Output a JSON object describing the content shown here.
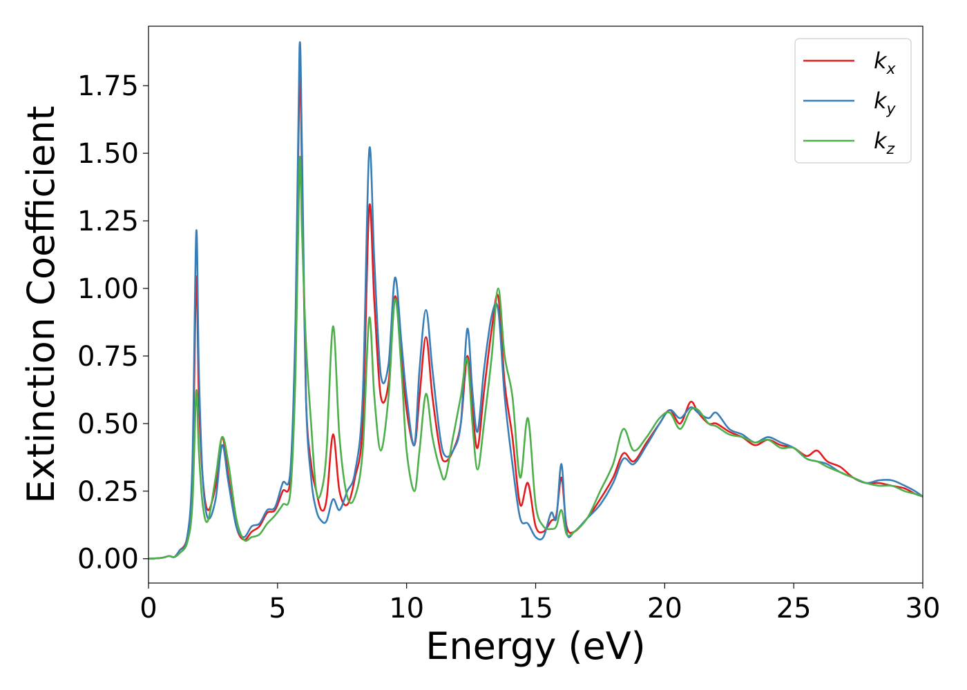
{
  "chart_data": {
    "type": "line",
    "title": "",
    "xlabel": "Energy (eV)",
    "ylabel": "Extinction Coefficient",
    "xlim": [
      0,
      30
    ],
    "ylim": [
      -0.09,
      1.97
    ],
    "xticks": [
      0,
      5,
      10,
      15,
      20,
      25,
      30
    ],
    "xtick_labels": [
      "0",
      "5",
      "10",
      "15",
      "20",
      "25",
      "30"
    ],
    "yticks": [
      0.0,
      0.25,
      0.5,
      0.75,
      1.0,
      1.25,
      1.5,
      1.75
    ],
    "ytick_labels": [
      "0.00",
      "0.25",
      "0.50",
      "0.75",
      "1.00",
      "1.25",
      "1.50",
      "1.75"
    ],
    "grid": false,
    "legend_position": "top-right",
    "series": [
      {
        "name": "k",
        "subscript": "x",
        "color": "#e41a1c",
        "points": [
          [
            0,
            0
          ],
          [
            0.5,
            0.003
          ],
          [
            0.8,
            0.01
          ],
          [
            1.0,
            0.006
          ],
          [
            1.2,
            0.03
          ],
          [
            1.5,
            0.08
          ],
          [
            1.7,
            0.3
          ],
          [
            1.85,
            1.04
          ],
          [
            1.95,
            0.6
          ],
          [
            2.1,
            0.3
          ],
          [
            2.3,
            0.18
          ],
          [
            2.6,
            0.27
          ],
          [
            2.85,
            0.45
          ],
          [
            3.1,
            0.3
          ],
          [
            3.4,
            0.12
          ],
          [
            3.7,
            0.07
          ],
          [
            4.0,
            0.1
          ],
          [
            4.3,
            0.12
          ],
          [
            4.6,
            0.17
          ],
          [
            4.9,
            0.18
          ],
          [
            5.2,
            0.25
          ],
          [
            5.5,
            0.3
          ],
          [
            5.7,
            0.8
          ],
          [
            5.85,
            1.8
          ],
          [
            5.95,
            1.4
          ],
          [
            6.1,
            0.6
          ],
          [
            6.3,
            0.35
          ],
          [
            6.5,
            0.25
          ],
          [
            6.7,
            0.18
          ],
          [
            6.9,
            0.22
          ],
          [
            7.15,
            0.46
          ],
          [
            7.4,
            0.25
          ],
          [
            7.7,
            0.2
          ],
          [
            8.0,
            0.3
          ],
          [
            8.3,
            0.5
          ],
          [
            8.55,
            1.3
          ],
          [
            8.75,
            0.95
          ],
          [
            9.0,
            0.6
          ],
          [
            9.3,
            0.65
          ],
          [
            9.55,
            0.97
          ],
          [
            9.8,
            0.75
          ],
          [
            10.0,
            0.55
          ],
          [
            10.3,
            0.42
          ],
          [
            10.5,
            0.6
          ],
          [
            10.75,
            0.82
          ],
          [
            11.0,
            0.6
          ],
          [
            11.3,
            0.4
          ],
          [
            11.5,
            0.36
          ],
          [
            11.8,
            0.4
          ],
          [
            12.1,
            0.5
          ],
          [
            12.35,
            0.75
          ],
          [
            12.55,
            0.55
          ],
          [
            12.75,
            0.41
          ],
          [
            13.0,
            0.62
          ],
          [
            13.3,
            0.85
          ],
          [
            13.55,
            0.97
          ],
          [
            13.8,
            0.65
          ],
          [
            14.1,
            0.45
          ],
          [
            14.4,
            0.2
          ],
          [
            14.7,
            0.28
          ],
          [
            15.0,
            0.12
          ],
          [
            15.3,
            0.1
          ],
          [
            15.6,
            0.14
          ],
          [
            15.8,
            0.16
          ],
          [
            16.0,
            0.3
          ],
          [
            16.2,
            0.12
          ],
          [
            16.5,
            0.1
          ],
          [
            17.0,
            0.15
          ],
          [
            17.5,
            0.22
          ],
          [
            18.0,
            0.3
          ],
          [
            18.4,
            0.39
          ],
          [
            18.8,
            0.36
          ],
          [
            19.3,
            0.43
          ],
          [
            19.8,
            0.5
          ],
          [
            20.2,
            0.55
          ],
          [
            20.6,
            0.5
          ],
          [
            21.0,
            0.58
          ],
          [
            21.3,
            0.54
          ],
          [
            21.7,
            0.5
          ],
          [
            22.0,
            0.5
          ],
          [
            22.5,
            0.47
          ],
          [
            23.0,
            0.45
          ],
          [
            23.5,
            0.42
          ],
          [
            24.0,
            0.44
          ],
          [
            24.5,
            0.42
          ],
          [
            25.0,
            0.41
          ],
          [
            25.5,
            0.38
          ],
          [
            25.9,
            0.4
          ],
          [
            26.3,
            0.36
          ],
          [
            26.8,
            0.34
          ],
          [
            27.3,
            0.3
          ],
          [
            27.8,
            0.28
          ],
          [
            28.3,
            0.28
          ],
          [
            28.8,
            0.27
          ],
          [
            29.3,
            0.26
          ],
          [
            29.7,
            0.24
          ],
          [
            30.0,
            0.23
          ]
        ]
      },
      {
        "name": "k",
        "subscript": "y",
        "color": "#377eb8",
        "points": [
          [
            0,
            0
          ],
          [
            0.5,
            0.003
          ],
          [
            0.8,
            0.01
          ],
          [
            1.0,
            0.006
          ],
          [
            1.2,
            0.03
          ],
          [
            1.5,
            0.08
          ],
          [
            1.7,
            0.35
          ],
          [
            1.85,
            1.21
          ],
          [
            1.95,
            0.7
          ],
          [
            2.1,
            0.3
          ],
          [
            2.3,
            0.15
          ],
          [
            2.6,
            0.22
          ],
          [
            2.85,
            0.42
          ],
          [
            3.1,
            0.28
          ],
          [
            3.4,
            0.12
          ],
          [
            3.7,
            0.08
          ],
          [
            4.0,
            0.12
          ],
          [
            4.3,
            0.13
          ],
          [
            4.6,
            0.18
          ],
          [
            4.9,
            0.19
          ],
          [
            5.2,
            0.28
          ],
          [
            5.5,
            0.33
          ],
          [
            5.7,
            0.9
          ],
          [
            5.85,
            1.89
          ],
          [
            5.95,
            1.5
          ],
          [
            6.1,
            0.6
          ],
          [
            6.3,
            0.3
          ],
          [
            6.5,
            0.18
          ],
          [
            6.7,
            0.14
          ],
          [
            6.9,
            0.14
          ],
          [
            7.15,
            0.22
          ],
          [
            7.4,
            0.18
          ],
          [
            7.7,
            0.25
          ],
          [
            8.0,
            0.32
          ],
          [
            8.3,
            0.6
          ],
          [
            8.55,
            1.51
          ],
          [
            8.75,
            1.1
          ],
          [
            9.0,
            0.68
          ],
          [
            9.3,
            0.72
          ],
          [
            9.55,
            1.04
          ],
          [
            9.8,
            0.8
          ],
          [
            10.0,
            0.6
          ],
          [
            10.3,
            0.42
          ],
          [
            10.5,
            0.7
          ],
          [
            10.75,
            0.92
          ],
          [
            11.0,
            0.7
          ],
          [
            11.3,
            0.45
          ],
          [
            11.5,
            0.38
          ],
          [
            11.8,
            0.4
          ],
          [
            12.1,
            0.5
          ],
          [
            12.35,
            0.85
          ],
          [
            12.55,
            0.62
          ],
          [
            12.75,
            0.47
          ],
          [
            13.0,
            0.7
          ],
          [
            13.3,
            0.9
          ],
          [
            13.55,
            0.92
          ],
          [
            13.8,
            0.6
          ],
          [
            14.1,
            0.35
          ],
          [
            14.4,
            0.15
          ],
          [
            14.7,
            0.13
          ],
          [
            15.0,
            0.08
          ],
          [
            15.3,
            0.08
          ],
          [
            15.6,
            0.17
          ],
          [
            15.8,
            0.15
          ],
          [
            16.0,
            0.35
          ],
          [
            16.2,
            0.1
          ],
          [
            16.5,
            0.1
          ],
          [
            17.0,
            0.15
          ],
          [
            17.5,
            0.2
          ],
          [
            18.0,
            0.28
          ],
          [
            18.4,
            0.37
          ],
          [
            18.8,
            0.35
          ],
          [
            19.3,
            0.42
          ],
          [
            19.8,
            0.5
          ],
          [
            20.2,
            0.55
          ],
          [
            20.6,
            0.52
          ],
          [
            21.0,
            0.56
          ],
          [
            21.3,
            0.54
          ],
          [
            21.7,
            0.52
          ],
          [
            22.0,
            0.54
          ],
          [
            22.5,
            0.48
          ],
          [
            23.0,
            0.46
          ],
          [
            23.5,
            0.43
          ],
          [
            24.0,
            0.45
          ],
          [
            24.5,
            0.43
          ],
          [
            25.0,
            0.41
          ],
          [
            25.5,
            0.37
          ],
          [
            25.9,
            0.36
          ],
          [
            26.3,
            0.35
          ],
          [
            26.8,
            0.32
          ],
          [
            27.3,
            0.3
          ],
          [
            27.8,
            0.28
          ],
          [
            28.3,
            0.29
          ],
          [
            28.8,
            0.29
          ],
          [
            29.3,
            0.27
          ],
          [
            29.7,
            0.25
          ],
          [
            30.0,
            0.23
          ]
        ]
      },
      {
        "name": "k",
        "subscript": "z",
        "color": "#4daf4a",
        "points": [
          [
            0,
            0
          ],
          [
            0.5,
            0.003
          ],
          [
            0.8,
            0.01
          ],
          [
            1.0,
            0.006
          ],
          [
            1.2,
            0.02
          ],
          [
            1.5,
            0.06
          ],
          [
            1.7,
            0.2
          ],
          [
            1.85,
            0.62
          ],
          [
            1.95,
            0.4
          ],
          [
            2.1,
            0.2
          ],
          [
            2.3,
            0.14
          ],
          [
            2.6,
            0.3
          ],
          [
            2.85,
            0.45
          ],
          [
            3.1,
            0.35
          ],
          [
            3.4,
            0.15
          ],
          [
            3.7,
            0.07
          ],
          [
            4.0,
            0.08
          ],
          [
            4.3,
            0.09
          ],
          [
            4.6,
            0.13
          ],
          [
            4.9,
            0.16
          ],
          [
            5.2,
            0.2
          ],
          [
            5.5,
            0.25
          ],
          [
            5.7,
            0.7
          ],
          [
            5.85,
            1.47
          ],
          [
            5.95,
            1.2
          ],
          [
            6.1,
            0.8
          ],
          [
            6.3,
            0.5
          ],
          [
            6.5,
            0.25
          ],
          [
            6.7,
            0.25
          ],
          [
            6.9,
            0.4
          ],
          [
            7.15,
            0.86
          ],
          [
            7.4,
            0.45
          ],
          [
            7.7,
            0.23
          ],
          [
            8.0,
            0.23
          ],
          [
            8.3,
            0.4
          ],
          [
            8.55,
            0.89
          ],
          [
            8.75,
            0.6
          ],
          [
            9.0,
            0.4
          ],
          [
            9.3,
            0.6
          ],
          [
            9.55,
            0.96
          ],
          [
            9.8,
            0.7
          ],
          [
            10.0,
            0.4
          ],
          [
            10.3,
            0.25
          ],
          [
            10.5,
            0.4
          ],
          [
            10.75,
            0.61
          ],
          [
            11.0,
            0.45
          ],
          [
            11.3,
            0.33
          ],
          [
            11.5,
            0.3
          ],
          [
            11.8,
            0.45
          ],
          [
            12.1,
            0.6
          ],
          [
            12.35,
            0.74
          ],
          [
            12.55,
            0.5
          ],
          [
            12.75,
            0.33
          ],
          [
            13.0,
            0.5
          ],
          [
            13.3,
            0.75
          ],
          [
            13.55,
            1.0
          ],
          [
            13.8,
            0.75
          ],
          [
            14.1,
            0.6
          ],
          [
            14.4,
            0.3
          ],
          [
            14.7,
            0.52
          ],
          [
            15.0,
            0.2
          ],
          [
            15.3,
            0.12
          ],
          [
            15.6,
            0.11
          ],
          [
            15.8,
            0.12
          ],
          [
            16.0,
            0.18
          ],
          [
            16.2,
            0.09
          ],
          [
            16.5,
            0.1
          ],
          [
            17.0,
            0.15
          ],
          [
            17.5,
            0.25
          ],
          [
            18.0,
            0.35
          ],
          [
            18.4,
            0.48
          ],
          [
            18.8,
            0.4
          ],
          [
            19.3,
            0.45
          ],
          [
            19.8,
            0.52
          ],
          [
            20.2,
            0.54
          ],
          [
            20.6,
            0.48
          ],
          [
            21.0,
            0.55
          ],
          [
            21.3,
            0.55
          ],
          [
            21.7,
            0.5
          ],
          [
            22.0,
            0.49
          ],
          [
            22.5,
            0.46
          ],
          [
            23.0,
            0.45
          ],
          [
            23.5,
            0.43
          ],
          [
            24.0,
            0.44
          ],
          [
            24.5,
            0.41
          ],
          [
            25.0,
            0.41
          ],
          [
            25.5,
            0.37
          ],
          [
            25.9,
            0.36
          ],
          [
            26.3,
            0.34
          ],
          [
            26.8,
            0.32
          ],
          [
            27.3,
            0.3
          ],
          [
            27.8,
            0.28
          ],
          [
            28.3,
            0.27
          ],
          [
            28.8,
            0.27
          ],
          [
            29.3,
            0.25
          ],
          [
            29.7,
            0.24
          ],
          [
            30.0,
            0.23
          ]
        ]
      }
    ]
  }
}
